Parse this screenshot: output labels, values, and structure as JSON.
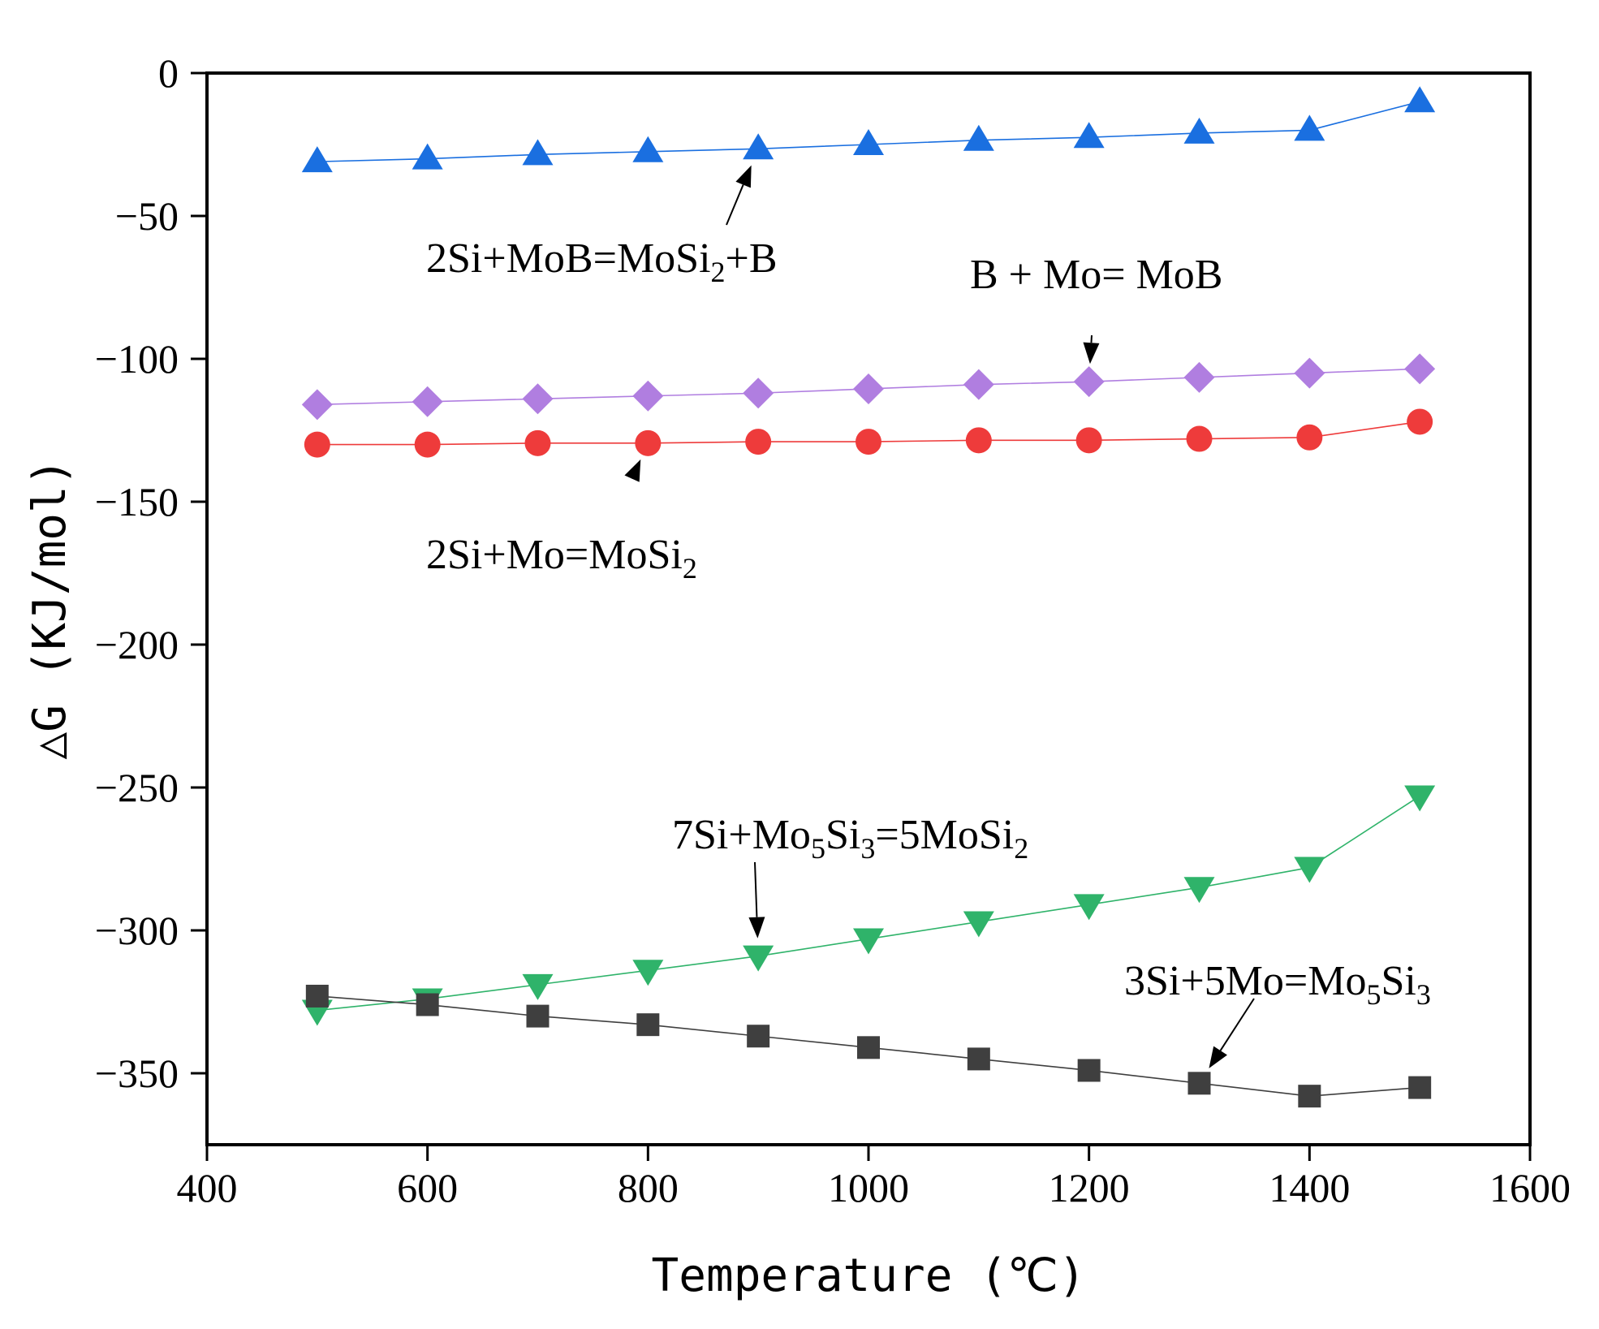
{
  "chart_data": {
    "type": "line",
    "title": "",
    "xlabel": "Temperature (℃)",
    "ylabel": "△G (KJ/mol)",
    "xlim": [
      400,
      1600
    ],
    "ylim": [
      -375,
      0
    ],
    "xticks": [
      400,
      600,
      800,
      1000,
      1200,
      1400,
      1600
    ],
    "yticks": [
      0,
      -50,
      -100,
      -150,
      -200,
      -250,
      -300,
      -350
    ],
    "grid": false,
    "legend": "none",
    "x": [
      500,
      600,
      700,
      800,
      900,
      1000,
      1100,
      1200,
      1300,
      1400,
      1500
    ],
    "series": [
      {
        "name": "2Si+MoB=MoSi2+B",
        "marker": "triangle-up",
        "color": "#1a6fe0",
        "values": [
          -31,
          -30,
          -28.5,
          -27.5,
          -26.5,
          -25,
          -23.5,
          -22.5,
          -21,
          -20,
          -10
        ]
      },
      {
        "name": "B + Mo= MoB",
        "marker": "diamond",
        "color": "#b07ee0",
        "values": [
          -116,
          -115,
          -114,
          -113,
          -112,
          -110.5,
          -109,
          -108,
          -106.5,
          -105,
          -103.5
        ]
      },
      {
        "name": "2Si+Mo=MoSi2",
        "marker": "circle",
        "color": "#ee3b3b",
        "values": [
          -130,
          -130,
          -129.5,
          -129.5,
          -129,
          -129,
          -128.5,
          -128.5,
          -128,
          -127.5,
          -122
        ]
      },
      {
        "name": "7Si+Mo5Si3=5MoSi2",
        "marker": "triangle-down",
        "color": "#2fb36a",
        "values": [
          -328,
          -324,
          -319,
          -314,
          -309,
          -303,
          -297,
          -291,
          -285,
          -278,
          -253
        ]
      },
      {
        "name": "3Si+5Mo=Mo5Si3",
        "marker": "square",
        "color": "#3f3f3f",
        "values": [
          -323,
          -326,
          -330,
          -333,
          -337,
          -341,
          -345,
          -349,
          -353.5,
          -358,
          -355
        ]
      }
    ],
    "annotations": [
      {
        "series": 0,
        "parts": [
          "2Si+MoB=MoSi",
          "2",
          "+B"
        ],
        "arrow_to": [
          900,
          -26.5
        ]
      },
      {
        "series": 1,
        "parts": [
          "B + Mo= MoB"
        ],
        "arrow_to": [
          1200,
          -108
        ]
      },
      {
        "series": 2,
        "parts": [
          "2Si+Mo=MoSi",
          "2"
        ],
        "arrow_to": [
          800,
          -129.5
        ]
      },
      {
        "series": 3,
        "parts": [
          "7Si+Mo",
          "5",
          "Si",
          "3",
          "=5MoSi",
          "2"
        ],
        "arrow_to": [
          900,
          -309
        ]
      },
      {
        "series": 4,
        "parts": [
          "3Si+5Mo=Mo",
          "5",
          "Si",
          "3"
        ],
        "arrow_to": [
          1300,
          -353.5
        ]
      }
    ]
  }
}
